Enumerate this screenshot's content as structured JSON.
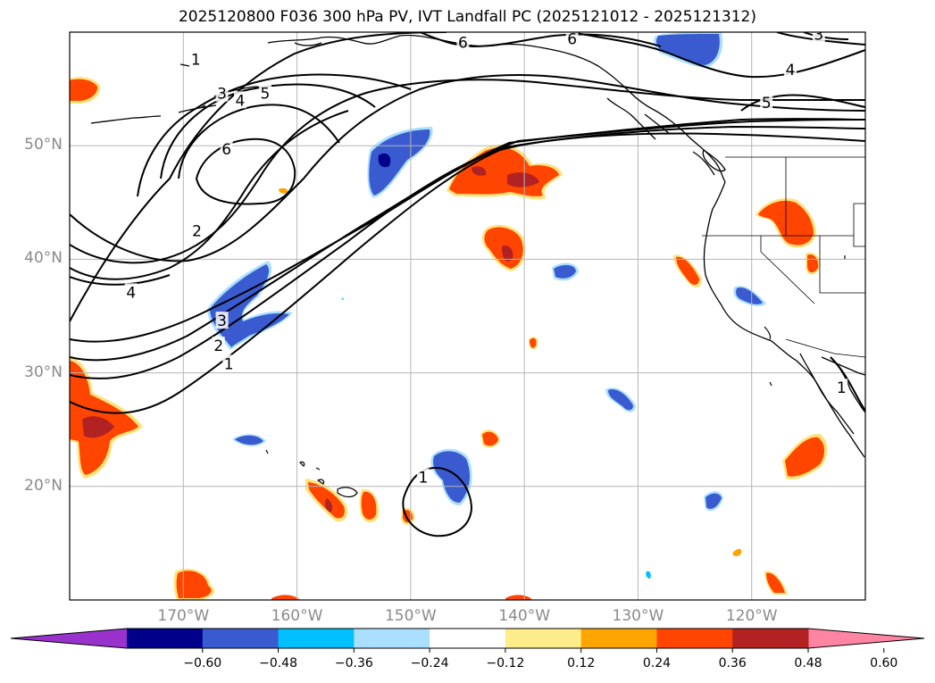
{
  "title": "2025120800 F036 300 hPa PV, IVT Landfall PC (2025121012 - 2025121312)",
  "map": {
    "extent": {
      "lon_min": -180,
      "lon_max": -110,
      "lat_min": 10,
      "lat_max": 60
    },
    "lat_labels": [
      {
        "lat": 50,
        "text": "50°N"
      },
      {
        "lat": 40,
        "text": "40°N"
      },
      {
        "lat": 30,
        "text": "30°N"
      },
      {
        "lat": 20,
        "text": "20°N"
      }
    ],
    "lon_labels": [
      {
        "lon": -170,
        "text": "170°W"
      },
      {
        "lon": -160,
        "text": "160°W"
      },
      {
        "lon": -150,
        "text": "150°W"
      },
      {
        "lon": -140,
        "text": "140°W"
      },
      {
        "lon": -130,
        "text": "130°W"
      },
      {
        "lon": -120,
        "text": "120°W"
      }
    ],
    "gridline_lats": [
      50,
      40,
      30,
      20
    ],
    "gridline_lons": [
      -170,
      -160,
      -150,
      -140,
      -130,
      -120
    ],
    "pv_contour_labels": [
      {
        "text": "1",
        "lon": -168.9,
        "lat": 57.6
      },
      {
        "text": "3",
        "lon": -166.6,
        "lat": 54.6
      },
      {
        "text": "4",
        "lon": -165.0,
        "lat": 54.0
      },
      {
        "text": "5",
        "lon": -162.8,
        "lat": 54.6
      },
      {
        "text": "6",
        "lon": -166.2,
        "lat": 49.7
      },
      {
        "text": "2",
        "lon": -168.8,
        "lat": 42.5
      },
      {
        "text": "4",
        "lon": -174.6,
        "lat": 37.1
      },
      {
        "text": "3",
        "lon": -166.6,
        "lat": 34.6
      },
      {
        "text": "2",
        "lon": -166.9,
        "lat": 32.4
      },
      {
        "text": "1",
        "lon": -166.0,
        "lat": 30.8
      },
      {
        "text": "6",
        "lon": -145.4,
        "lat": 59.1
      },
      {
        "text": "6",
        "lon": -135.8,
        "lat": 59.4
      },
      {
        "text": "3",
        "lon": -114.1,
        "lat": 59.8
      },
      {
        "text": "4",
        "lon": -116.6,
        "lat": 56.7
      },
      {
        "text": "5",
        "lon": -118.7,
        "lat": 53.8
      },
      {
        "text": "1",
        "lon": -148.9,
        "lat": 20.8
      },
      {
        "text": "1",
        "lon": -112.1,
        "lat": 28.7
      }
    ]
  },
  "colorbar": {
    "colors": [
      "#9932cc",
      "#00008b",
      "#3a5bd0",
      "#00bfff",
      "#aadfff",
      "#ffffff",
      "#ffec8b",
      "#ffa500",
      "#ff4500",
      "#b22222",
      "#ff85a2"
    ],
    "tick_labels": [
      "−0.60",
      "−0.48",
      "−0.36",
      "−0.24",
      "−0.12",
      "0.12",
      "0.24",
      "0.36",
      "0.48",
      "0.60"
    ]
  }
}
